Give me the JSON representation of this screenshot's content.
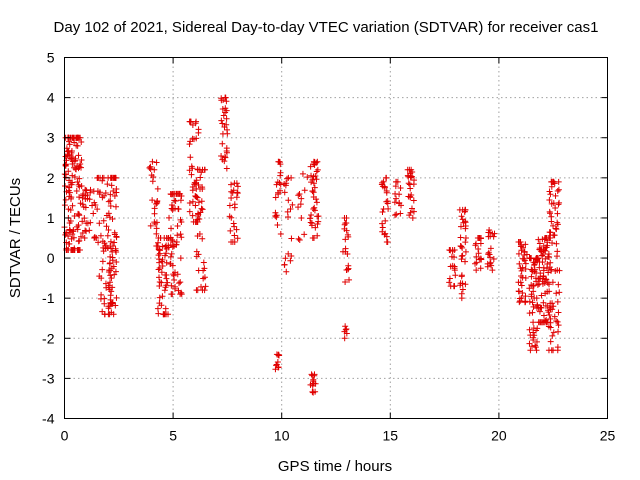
{
  "chart_data": {
    "type": "scatter",
    "title": "Day 102 of 2021, Sidereal Day-to-day VTEC variation (SDTVAR) for receiver cas1",
    "xlabel": "GPS time / hours",
    "ylabel": "SDTVAR / TECUs",
    "xlim": [
      0,
      25
    ],
    "ylim": [
      -4,
      5
    ],
    "xticks": [
      0,
      5,
      10,
      15,
      20,
      25
    ],
    "yticks": [
      -4,
      -3,
      -2,
      -1,
      0,
      1,
      2,
      3,
      4,
      5
    ],
    "grid": true,
    "marker": "plus",
    "color": "#e00000",
    "clusters": [
      {
        "x": [
          0.0,
          0.8
        ],
        "y": [
          0.2,
          3.0
        ],
        "n": 140
      },
      {
        "x": [
          0.8,
          1.5
        ],
        "y": [
          0.5,
          1.7
        ],
        "n": 35
      },
      {
        "x": [
          1.5,
          2.0
        ],
        "y": [
          0.3,
          2.0
        ],
        "n": 25
      },
      {
        "x": [
          1.6,
          2.3
        ],
        "y": [
          -1.4,
          0.3
        ],
        "n": 40
      },
      {
        "x": [
          2.0,
          2.4
        ],
        "y": [
          -1.2,
          2.0
        ],
        "n": 55
      },
      {
        "x": [
          3.9,
          4.3
        ],
        "y": [
          0.3,
          2.4
        ],
        "n": 25
      },
      {
        "x": [
          4.3,
          4.8
        ],
        "y": [
          -1.4,
          0.5
        ],
        "n": 55
      },
      {
        "x": [
          4.8,
          5.4
        ],
        "y": [
          -0.9,
          1.6
        ],
        "n": 60
      },
      {
        "x": [
          5.7,
          6.2
        ],
        "y": [
          0.9,
          3.4
        ],
        "n": 35
      },
      {
        "x": [
          6.0,
          6.5
        ],
        "y": [
          -0.8,
          2.2
        ],
        "n": 45
      },
      {
        "x": [
          7.2,
          7.5
        ],
        "y": [
          2.2,
          4.0
        ],
        "n": 30
      },
      {
        "x": [
          7.6,
          8.0
        ],
        "y": [
          0.4,
          1.9
        ],
        "n": 25
      },
      {
        "x": [
          9.7,
          10.0
        ],
        "y": [
          0.6,
          2.4
        ],
        "n": 20
      },
      {
        "x": [
          9.7,
          9.9
        ],
        "y": [
          -2.8,
          -2.4
        ],
        "n": 10
      },
      {
        "x": [
          10.1,
          10.5
        ],
        "y": [
          -0.4,
          2.0
        ],
        "n": 20
      },
      {
        "x": [
          10.7,
          11.2
        ],
        "y": [
          0.2,
          2.1
        ],
        "n": 12
      },
      {
        "x": [
          11.3,
          11.7
        ],
        "y": [
          0.5,
          2.4
        ],
        "n": 40
      },
      {
        "x": [
          11.3,
          11.6
        ],
        "y": [
          -3.4,
          -2.9
        ],
        "n": 15
      },
      {
        "x": [
          12.8,
          13.1
        ],
        "y": [
          -0.7,
          1.0
        ],
        "n": 20
      },
      {
        "x": [
          12.8,
          13.0
        ],
        "y": [
          -2.0,
          -1.7
        ],
        "n": 6
      },
      {
        "x": [
          14.6,
          14.9
        ],
        "y": [
          0.4,
          2.0
        ],
        "n": 25
      },
      {
        "x": [
          15.2,
          15.5
        ],
        "y": [
          1.0,
          1.9
        ],
        "n": 15
      },
      {
        "x": [
          15.8,
          16.1
        ],
        "y": [
          1.0,
          2.2
        ],
        "n": 25
      },
      {
        "x": [
          17.7,
          18.0
        ],
        "y": [
          -0.7,
          0.2
        ],
        "n": 20
      },
      {
        "x": [
          18.2,
          18.5
        ],
        "y": [
          -1.0,
          1.2
        ],
        "n": 35
      },
      {
        "x": [
          18.9,
          19.2
        ],
        "y": [
          -0.3,
          0.5
        ],
        "n": 20
      },
      {
        "x": [
          19.4,
          19.8
        ],
        "y": [
          -0.3,
          0.7
        ],
        "n": 20
      },
      {
        "x": [
          20.9,
          21.3
        ],
        "y": [
          -1.1,
          0.4
        ],
        "n": 40
      },
      {
        "x": [
          21.4,
          21.8
        ],
        "y": [
          -2.3,
          0.0
        ],
        "n": 60
      },
      {
        "x": [
          21.8,
          22.4
        ],
        "y": [
          -1.6,
          0.5
        ],
        "n": 90
      },
      {
        "x": [
          22.3,
          22.8
        ],
        "y": [
          -2.3,
          1.9
        ],
        "n": 70
      }
    ]
  }
}
